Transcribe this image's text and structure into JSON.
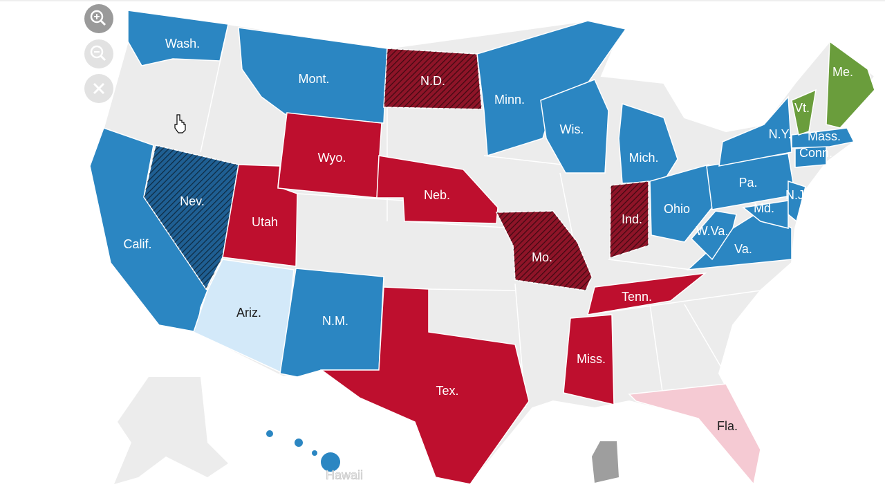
{
  "map": {
    "states": [
      {
        "label": "Wash.",
        "fill": "#2b86c2",
        "hatched": false
      },
      {
        "label": "Mont.",
        "fill": "#2b86c2",
        "hatched": false
      },
      {
        "label": "N.D.",
        "fill": "#8e1428",
        "hatched": true
      },
      {
        "label": "Minn.",
        "fill": "#2b86c2",
        "hatched": false
      },
      {
        "label": "Wis.",
        "fill": "#2b86c2",
        "hatched": false
      },
      {
        "label": "Mich.",
        "fill": "#2b86c2",
        "hatched": false
      },
      {
        "label": "Calif.",
        "fill": "#2b86c2",
        "hatched": false
      },
      {
        "label": "Nev.",
        "fill": "#1f5f93",
        "hatched": true
      },
      {
        "label": "Utah",
        "fill": "#be0f2e",
        "hatched": false
      },
      {
        "label": "Wyo.",
        "fill": "#be0f2e",
        "hatched": false
      },
      {
        "label": "Neb.",
        "fill": "#be0f2e",
        "hatched": false
      },
      {
        "label": "Mo.",
        "fill": "#8e1428",
        "hatched": true
      },
      {
        "label": "Ind.",
        "fill": "#8e1428",
        "hatched": true
      },
      {
        "label": "Ohio",
        "fill": "#2b86c2",
        "hatched": false
      },
      {
        "label": "Pa.",
        "fill": "#2b86c2",
        "hatched": false
      },
      {
        "label": "N.Y.",
        "fill": "#2b86c2",
        "hatched": false
      },
      {
        "label": "Va.",
        "fill": "#2b86c2",
        "hatched": false
      },
      {
        "label": "W.Va.",
        "fill": "#2b86c2",
        "hatched": false
      },
      {
        "label": "Md.",
        "fill": "#2b86c2",
        "hatched": false
      },
      {
        "label": "N.J.",
        "fill": "#2b86c2",
        "hatched": false
      },
      {
        "label": "Conn.",
        "fill": "#2b86c2",
        "hatched": false
      },
      {
        "label": "Mass.",
        "fill": "#2b86c2",
        "hatched": false
      },
      {
        "label": "Vt.",
        "fill": "#6a9d3c",
        "hatched": false
      },
      {
        "label": "Me.",
        "fill": "#6a9d3c",
        "hatched": false
      },
      {
        "label": "Ariz.",
        "fill": "#d3e9f9",
        "hatched": false
      },
      {
        "label": "N.M.",
        "fill": "#2b86c2",
        "hatched": false
      },
      {
        "label": "Tex.",
        "fill": "#be0f2e",
        "hatched": false
      },
      {
        "label": "Tenn.",
        "fill": "#be0f2e",
        "hatched": false
      },
      {
        "label": "Miss.",
        "fill": "#be0f2e",
        "hatched": false
      },
      {
        "label": "Fla.",
        "fill": "#f5cad3",
        "hatched": false
      },
      {
        "label": "Hawaii",
        "fill": "#2b86c2",
        "hatched": false
      }
    ]
  }
}
